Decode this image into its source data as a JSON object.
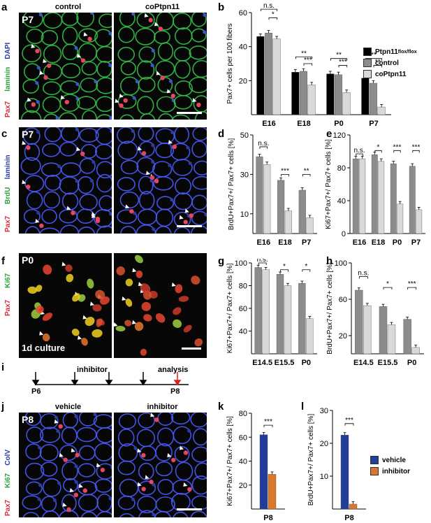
{
  "panels": {
    "a": {
      "letter": "a",
      "stage": "P7",
      "col1": "control",
      "col2": "coPtpn11",
      "stain_dapi": "DAPI",
      "stain_laminin": "laminin",
      "stain_pax7": "Pax7"
    },
    "c": {
      "letter": "c",
      "stage": "P7",
      "stain_laminin": "laminin",
      "stain_brdu": "BrdU",
      "stain_pax7": "Pax7"
    },
    "f": {
      "letter": "f",
      "stage": "P0",
      "culture": "1d culture",
      "stain_ki67": "Ki67",
      "stain_pax7": "Pax7"
    },
    "i": {
      "letter": "i",
      "inhibitor": "inhibitor",
      "analysis": "analysis",
      "start": "P6",
      "end": "P8"
    },
    "j": {
      "letter": "j",
      "stage": "P8",
      "col1": "vehicle",
      "col2": "inhibitor",
      "stain_colv": "ColV",
      "stain_ki67": "Ki67",
      "stain_pax7": "Pax7"
    }
  },
  "colors": {
    "black": "#000000",
    "dark_gray": "#8c8c8c",
    "light_gray": "#d9d9d9",
    "vehicle": "#1f3d99",
    "inhibitor": "#d9772c"
  },
  "legend_b": {
    "items": [
      {
        "label": "Ptpn11",
        "sup": "flox/flox",
        "color": "#000000"
      },
      {
        "label": "control",
        "color": "#8c8c8c"
      },
      {
        "label": "coPtpn11",
        "color": "#d9d9d9"
      }
    ]
  },
  "legend_kl": {
    "items": [
      {
        "label": "vehicle",
        "color": "#1f3d99"
      },
      {
        "label": "inhibitor",
        "color": "#d9772c"
      }
    ]
  },
  "chart_data": [
    {
      "id": "b",
      "type": "bar",
      "letter": "b",
      "ylabel": "Pax7+ cells per 100 fibers",
      "ylim": [
        0,
        60
      ],
      "yticks": [
        20,
        40,
        60
      ],
      "categories": [
        "E16",
        "E18",
        "P0",
        "P7"
      ],
      "series": [
        {
          "name": "Ptpn11flox/flox",
          "values": [
            46,
            25,
            24,
            21.5
          ]
        },
        {
          "name": "control",
          "values": [
            48,
            25.5,
            23.5,
            18.5
          ]
        },
        {
          "name": "coPtpn11",
          "values": [
            44.5,
            17.5,
            13,
            4.5
          ]
        }
      ],
      "annotations": [
        {
          "label": "n.s."
        },
        {
          "label": "*"
        },
        {
          "label": "**"
        },
        {
          "label": "***"
        },
        {
          "label": "**"
        },
        {
          "label": "***"
        },
        {
          "label": "**"
        },
        {
          "label": "**"
        }
      ]
    },
    {
      "id": "d",
      "type": "bar",
      "letter": "d",
      "ylabel": "BrdU+Pax7+/ Pax7+ cells [%]",
      "ylim": [
        0,
        50
      ],
      "yticks": [
        10,
        30,
        50
      ],
      "categories": [
        "E16",
        "E18",
        "P7"
      ],
      "series": [
        {
          "name": "control",
          "values": [
            39,
            27,
            22
          ]
        },
        {
          "name": "coPtpn11",
          "values": [
            35,
            11.5,
            8
          ]
        }
      ],
      "annotations": [
        {
          "label": "n.s."
        },
        {
          "label": "***"
        },
        {
          "label": "**"
        }
      ]
    },
    {
      "id": "e",
      "type": "bar",
      "letter": "e",
      "ylabel": "Ki67+Pax7+/ Pax7+ cells [%]",
      "ylim": [
        0,
        120
      ],
      "yticks": [
        0,
        40,
        80,
        120
      ],
      "categories": [
        "E16",
        "E18",
        "P0",
        "P7"
      ],
      "series": [
        {
          "name": "control",
          "values": [
            91,
            96,
            85,
            82
          ]
        },
        {
          "name": "coPtpn11",
          "values": [
            91,
            88,
            36,
            29
          ]
        }
      ],
      "annotations": [
        {
          "label": "n.s."
        },
        {
          "label": "*"
        },
        {
          "label": "***"
        },
        {
          "label": "***"
        }
      ]
    },
    {
      "id": "g",
      "type": "bar",
      "letter": "g",
      "ylabel": "Ki67+Pax7+/ Pax7+ cells [%]",
      "ylim": [
        20,
        100
      ],
      "yticks": [
        40,
        60,
        80,
        100
      ],
      "categories": [
        "E14.5",
        "E15.5",
        "P0"
      ],
      "series": [
        {
          "name": "control",
          "values": [
            96,
            90,
            82
          ]
        },
        {
          "name": "coPtpn11",
          "values": [
            94,
            80,
            51
          ]
        }
      ],
      "annotations": [
        {
          "label": "n.s."
        },
        {
          "label": "*"
        },
        {
          "label": "*"
        }
      ]
    },
    {
      "id": "h",
      "type": "bar",
      "letter": "h",
      "ylabel": "BrdU+Pax7+/ Pax7+ cells [%]",
      "ylim": [
        0,
        100
      ],
      "yticks": [
        20,
        60,
        100
      ],
      "categories": [
        "E14.5",
        "E15.5",
        "P0"
      ],
      "series": [
        {
          "name": "control",
          "values": [
            70,
            52,
            38
          ]
        },
        {
          "name": "coPtpn11",
          "values": [
            53,
            32,
            7
          ]
        }
      ],
      "annotations": [
        {
          "label": "n.s."
        },
        {
          "label": "*"
        },
        {
          "label": "***"
        }
      ]
    },
    {
      "id": "k",
      "type": "bar",
      "letter": "k",
      "ylabel": "Ki67+Pax7+/ Pax7+ cells [%]",
      "ylim": [
        0,
        80
      ],
      "yticks": [
        20,
        40,
        60,
        80
      ],
      "categories": [
        "P8"
      ],
      "series": [
        {
          "name": "vehicle",
          "values": [
            62
          ]
        },
        {
          "name": "inhibitor",
          "values": [
            29
          ]
        }
      ],
      "annotations": [
        {
          "label": "***"
        }
      ]
    },
    {
      "id": "l",
      "type": "bar",
      "letter": "l",
      "ylabel": "BrdU+Pax7+/ Pax7+ cells [%]",
      "ylim": [
        0,
        30
      ],
      "yticks": [
        10,
        20,
        30
      ],
      "categories": [
        "P8"
      ],
      "series": [
        {
          "name": "vehicle",
          "values": [
            22.5
          ]
        },
        {
          "name": "inhibitor",
          "values": [
            1.5
          ]
        }
      ],
      "annotations": [
        {
          "label": "***"
        }
      ]
    }
  ]
}
